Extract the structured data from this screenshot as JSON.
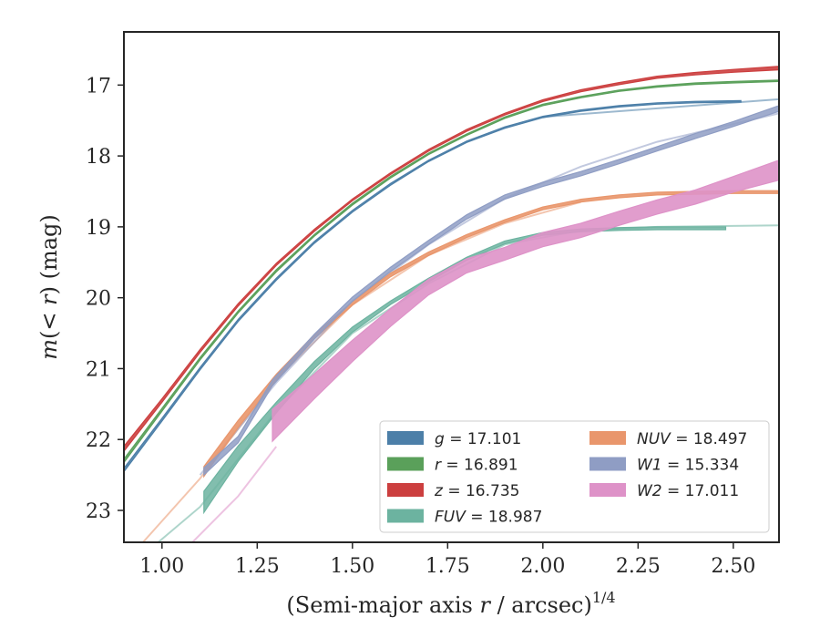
{
  "chart_data": {
    "type": "line",
    "title": "",
    "xlabel": "(Semi-major axis r / arcsec)^1/4",
    "xlabel_parts": {
      "pre": "(Semi-major axis ",
      "var": "r",
      "post": " / arcsec)",
      "sup": "1/4"
    },
    "ylabel": "m(< r) (mag)",
    "ylabel_parts": {
      "pre": "m(< ",
      "var": "r",
      "post": ") (mag)"
    },
    "xlim": [
      0.9,
      2.62
    ],
    "ylim": [
      23.45,
      16.25
    ],
    "y_inverted": true,
    "grid": false,
    "legend_placement": "lower-right",
    "xticks": [
      1.0,
      1.25,
      1.5,
      1.75,
      2.0,
      2.25,
      2.5
    ],
    "xtick_labels": [
      "1.00",
      "1.25",
      "1.50",
      "1.75",
      "2.00",
      "2.25",
      "2.50"
    ],
    "yticks": [
      17,
      18,
      19,
      20,
      21,
      22,
      23
    ],
    "ytick_labels": [
      "17",
      "18",
      "19",
      "20",
      "21",
      "22",
      "23"
    ],
    "series": [
      {
        "name": "g = 17.101",
        "name_var": "g",
        "name_value": "17.101",
        "color": "#4c7fa8",
        "band_opacity": 0.9,
        "x": [
          0.9,
          1.0,
          1.1,
          1.2,
          1.3,
          1.4,
          1.5,
          1.6,
          1.7,
          1.8,
          1.9,
          2.0,
          2.1,
          2.2,
          2.3,
          2.4,
          2.52
        ],
        "y": [
          22.43,
          21.72,
          21.0,
          20.32,
          19.74,
          19.22,
          18.78,
          18.4,
          18.07,
          17.8,
          17.6,
          17.45,
          17.36,
          17.3,
          17.26,
          17.24,
          17.23
        ],
        "width": [
          0.05,
          0.04,
          0.035,
          0.03,
          0.03,
          0.025,
          0.025,
          0.025,
          0.02,
          0.02,
          0.02,
          0.02,
          0.02,
          0.02,
          0.02,
          0.02,
          0.02
        ],
        "model_x": [
          2.0,
          2.62
        ],
        "model_y": [
          17.45,
          17.2
        ]
      },
      {
        "name": "r = 16.891",
        "name_var": "r",
        "name_value": "16.891",
        "color": "#5aa05a",
        "band_opacity": 0.9,
        "x": [
          0.9,
          1.0,
          1.1,
          1.2,
          1.3,
          1.4,
          1.5,
          1.6,
          1.7,
          1.8,
          1.9,
          2.0,
          2.1,
          2.2,
          2.3,
          2.4,
          2.5,
          2.62
        ],
        "y": [
          22.3,
          21.58,
          20.86,
          20.2,
          19.62,
          19.12,
          18.68,
          18.3,
          17.97,
          17.7,
          17.46,
          17.28,
          17.17,
          17.08,
          17.02,
          16.98,
          16.96,
          16.94
        ],
        "width": [
          0.05,
          0.04,
          0.035,
          0.03,
          0.03,
          0.025,
          0.025,
          0.025,
          0.02,
          0.02,
          0.02,
          0.02,
          0.02,
          0.02,
          0.02,
          0.02,
          0.02,
          0.02
        ]
      },
      {
        "name": "z = 16.735",
        "name_var": "z",
        "name_value": "16.735",
        "color": "#cc3f3f",
        "band_opacity": 0.9,
        "x": [
          0.9,
          1.0,
          1.1,
          1.2,
          1.3,
          1.4,
          1.5,
          1.6,
          1.7,
          1.8,
          1.9,
          2.0,
          2.1,
          2.2,
          2.3,
          2.4,
          2.5,
          2.62
        ],
        "y": [
          22.13,
          21.45,
          20.75,
          20.1,
          19.53,
          19.05,
          18.62,
          18.25,
          17.92,
          17.64,
          17.41,
          17.22,
          17.08,
          16.98,
          16.89,
          16.84,
          16.8,
          16.76
        ],
        "width": [
          0.07,
          0.05,
          0.04,
          0.035,
          0.03,
          0.03,
          0.025,
          0.025,
          0.025,
          0.025,
          0.025,
          0.025,
          0.03,
          0.03,
          0.03,
          0.035,
          0.04,
          0.05
        ]
      },
      {
        "name": "FUV = 18.987",
        "name_var": "FUV",
        "name_value": "18.987",
        "color": "#6cb3a0",
        "band_opacity": 0.85,
        "x": [
          1.11,
          1.2,
          1.3,
          1.4,
          1.5,
          1.6,
          1.7,
          1.8,
          1.9,
          2.0,
          2.1,
          2.2,
          2.3,
          2.4,
          2.48
        ],
        "y": [
          22.88,
          22.2,
          21.55,
          20.95,
          20.45,
          20.07,
          19.75,
          19.45,
          19.22,
          19.1,
          19.05,
          19.03,
          19.02,
          19.02,
          19.02
        ],
        "width": [
          0.3,
          0.22,
          0.15,
          0.1,
          0.07,
          0.05,
          0.05,
          0.04,
          0.04,
          0.04,
          0.04,
          0.04,
          0.04,
          0.04,
          0.04
        ],
        "model_x": [
          0.99,
          1.1,
          1.3,
          1.5,
          1.7,
          1.9,
          2.1,
          2.3,
          2.62
        ],
        "model_y": [
          23.45,
          22.95,
          21.6,
          20.5,
          19.8,
          19.25,
          19.05,
          19.0,
          18.98
        ]
      },
      {
        "name": "NUV = 18.497",
        "name_var": "NUV",
        "name_value": "18.497",
        "color": "#e9966c",
        "band_opacity": 0.9,
        "x": [
          1.11,
          1.2,
          1.3,
          1.4,
          1.5,
          1.6,
          1.7,
          1.8,
          1.9,
          2.0,
          2.1,
          2.2,
          2.3,
          2.4,
          2.5,
          2.62
        ],
        "y": [
          22.45,
          21.78,
          21.12,
          20.55,
          20.08,
          19.68,
          19.38,
          19.13,
          18.92,
          18.74,
          18.63,
          18.57,
          18.53,
          18.52,
          18.51,
          18.51
        ],
        "width": [
          0.14,
          0.1,
          0.08,
          0.06,
          0.05,
          0.05,
          0.05,
          0.04,
          0.04,
          0.04,
          0.04,
          0.04,
          0.04,
          0.04,
          0.04,
          0.04
        ],
        "model_x": [
          0.95,
          1.1,
          1.3,
          1.5,
          1.7,
          1.9,
          2.1
        ],
        "model_y": [
          23.45,
          22.55,
          21.15,
          20.1,
          19.4,
          18.95,
          18.65
        ]
      },
      {
        "name": "W1 = 15.334",
        "name_var": "W1",
        "name_value": "15.334",
        "color": "#8f9dc4",
        "band_opacity": 0.85,
        "x": [
          1.11,
          1.2,
          1.29,
          1.4,
          1.5,
          1.6,
          1.7,
          1.8,
          1.9,
          2.0,
          2.1,
          2.2,
          2.3,
          2.4,
          2.5,
          2.62
        ],
        "y": [
          22.45,
          22.0,
          21.2,
          20.55,
          20.02,
          19.6,
          19.22,
          18.86,
          18.58,
          18.4,
          18.25,
          18.08,
          17.9,
          17.72,
          17.55,
          17.33
        ],
        "width": [
          0.1,
          0.09,
          0.08,
          0.07,
          0.06,
          0.06,
          0.06,
          0.06,
          0.06,
          0.06,
          0.06,
          0.06,
          0.06,
          0.07,
          0.07,
          0.08
        ],
        "model_x": [
          1.1,
          1.3,
          1.5,
          1.7,
          1.9,
          2.1,
          2.3,
          2.5,
          2.62
        ],
        "model_y": [
          22.5,
          21.2,
          20.05,
          19.25,
          18.6,
          18.15,
          17.8,
          17.55,
          17.4
        ]
      },
      {
        "name": "W2 = 17.011",
        "name_var": "W2",
        "name_value": "17.011",
        "color": "#de92c8",
        "band_opacity": 0.9,
        "x": [
          1.29,
          1.4,
          1.5,
          1.6,
          1.7,
          1.8,
          1.9,
          2.0,
          2.1,
          2.2,
          2.3,
          2.4,
          2.5,
          2.62
        ],
        "y": [
          21.8,
          21.25,
          20.75,
          20.28,
          19.85,
          19.55,
          19.38,
          19.18,
          19.05,
          18.88,
          18.72,
          18.58,
          18.4,
          18.2
        ],
        "width": [
          0.45,
          0.35,
          0.3,
          0.25,
          0.22,
          0.2,
          0.18,
          0.2,
          0.2,
          0.2,
          0.2,
          0.2,
          0.22,
          0.28
        ],
        "model_x": [
          1.08,
          1.2,
          1.3
        ],
        "model_y": [
          23.45,
          22.8,
          22.1
        ]
      }
    ]
  }
}
